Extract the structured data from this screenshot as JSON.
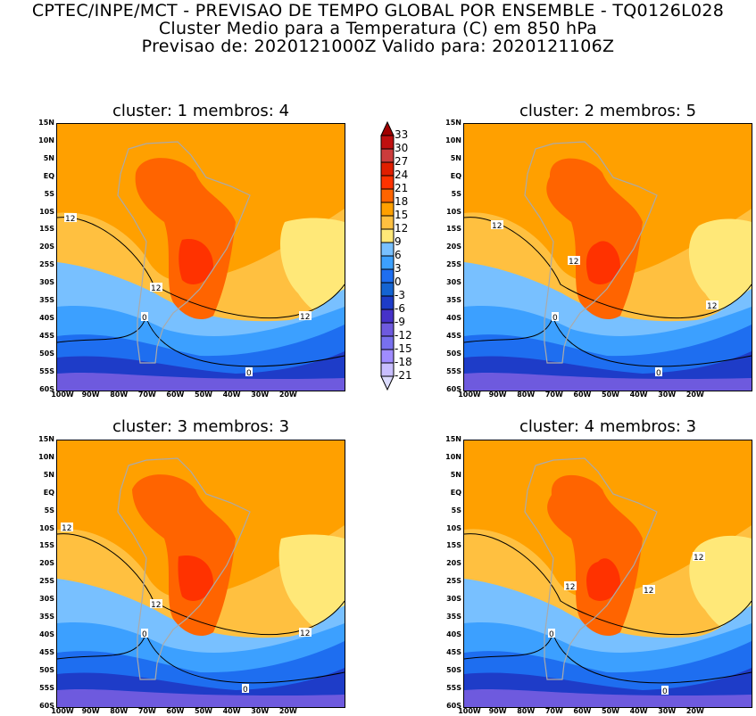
{
  "header": {
    "line1": "CPTEC/INPE/MCT - PREVISAO DE TEMPO GLOBAL POR ENSEMBLE - TQ0126L028",
    "line2": "Cluster Medio para a Temperatura (C) em 850 hPa",
    "line3": "Previsao de: 2020121000Z   Valido para: 2020121106Z"
  },
  "panels": [
    {
      "title": "cluster: 1   membros: 4",
      "labels": [
        "12",
        "12",
        "12",
        "0",
        "0"
      ]
    },
    {
      "title": "cluster: 2   membros: 5",
      "labels": [
        "12",
        "12",
        "12",
        "0",
        "0"
      ]
    },
    {
      "title": "cluster: 3   membros: 3",
      "labels": [
        "12",
        "12",
        "12",
        "0",
        "0"
      ]
    },
    {
      "title": "cluster: 4   membros: 3",
      "labels": [
        "12",
        "12",
        "12",
        "0",
        "0"
      ]
    }
  ],
  "lat_labels": [
    "15N",
    "10N",
    "5N",
    "EQ",
    "5S",
    "10S",
    "15S",
    "20S",
    "25S",
    "30S",
    "35S",
    "40S",
    "45S",
    "50S",
    "55S",
    "60S"
  ],
  "lon_labels": [
    "100W",
    "90W",
    "80W",
    "70W",
    "60W",
    "50W",
    "40W",
    "30W",
    "20W"
  ],
  "colorbar": {
    "labels": [
      "33",
      "30",
      "27",
      "24",
      "21",
      "18",
      "15",
      "12",
      "9",
      "6",
      "3",
      "0",
      "-3",
      "-6",
      "-9",
      "-12",
      "-15",
      "-18",
      "-21"
    ],
    "colors": [
      "#a00000",
      "#c01010",
      "#cc3c3c",
      "#e01e00",
      "#ff3200",
      "#ff6400",
      "#ffa000",
      "#ffc040",
      "#ffe878",
      "#78c0ff",
      "#3ca0ff",
      "#1e6ef0",
      "#1464d2",
      "#1e3cc8",
      "#4632c8",
      "#6e5ade",
      "#7870ee",
      "#a08cff",
      "#c8beff",
      "#dcdcff"
    ]
  }
}
